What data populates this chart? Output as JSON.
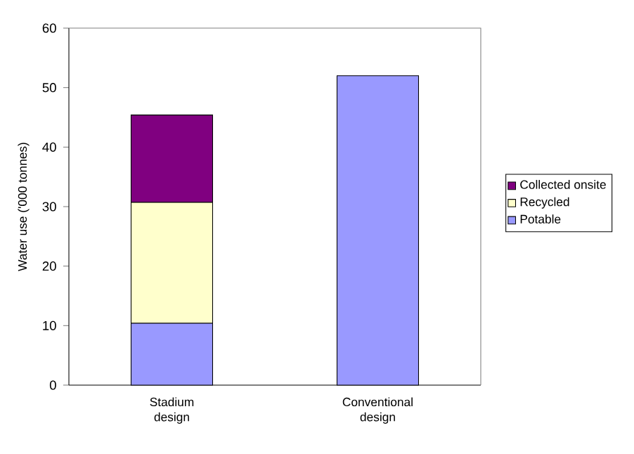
{
  "chart_data": {
    "type": "bar",
    "stacked": true,
    "ylabel": "Water use ('000 tonnes)",
    "categories": [
      "Stadium design",
      "Conventional design"
    ],
    "series": [
      {
        "name": "Potable",
        "color": "#9999ff",
        "values": [
          10.4,
          52.0
        ]
      },
      {
        "name": "Recycled",
        "color": "#ffffcc",
        "values": [
          20.3,
          null
        ]
      },
      {
        "name": "Collected onsite",
        "color": "#800080",
        "values": [
          14.7,
          null
        ]
      }
    ],
    "ylim": [
      0,
      60
    ],
    "yticks": [
      0,
      10,
      20,
      30,
      40,
      50,
      60
    ],
    "grid": false,
    "legend": "right"
  }
}
